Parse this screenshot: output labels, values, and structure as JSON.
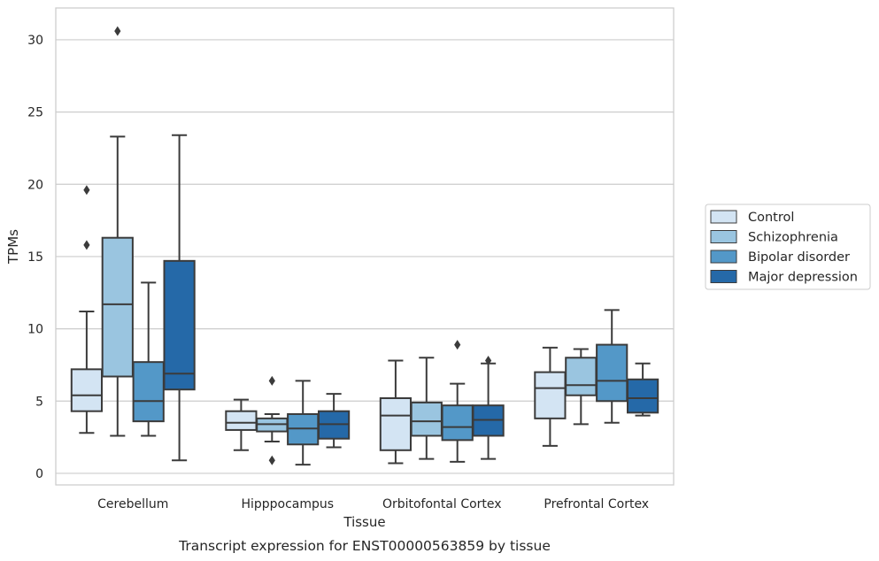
{
  "caption": "Transcript expression for ENST00000563859 by tissue",
  "chart_data": {
    "type": "boxplot",
    "xlabel": "Tissue",
    "ylabel": "TPMs",
    "ylim": [
      -0.8,
      32.2
    ],
    "yticks": [
      0,
      5,
      10,
      15,
      20,
      25,
      30
    ],
    "grid": "horizontal",
    "legend_position": "right",
    "categories": [
      "Cerebellum",
      "Hipppocampus",
      "Orbitofontal Cortex",
      "Prefrontal Cortex"
    ],
    "series": [
      {
        "name": "Control",
        "color": "#d3e4f3",
        "boxes": [
          {
            "whislo": 2.8,
            "q1": 4.3,
            "med": 5.4,
            "q3": 7.2,
            "whishi": 11.2,
            "fliers": [
              15.8,
              19.6
            ]
          },
          {
            "whislo": 1.6,
            "q1": 3.0,
            "med": 3.5,
            "q3": 4.3,
            "whishi": 5.1,
            "fliers": []
          },
          {
            "whislo": 0.7,
            "q1": 1.6,
            "med": 4.0,
            "q3": 5.2,
            "whishi": 7.8,
            "fliers": []
          },
          {
            "whislo": 1.9,
            "q1": 3.8,
            "med": 5.9,
            "q3": 7.0,
            "whishi": 8.7,
            "fliers": []
          }
        ]
      },
      {
        "name": "Schizophrenia",
        "color": "#9ac5e0",
        "boxes": [
          {
            "whislo": 2.6,
            "q1": 6.7,
            "med": 11.7,
            "q3": 16.3,
            "whishi": 23.3,
            "fliers": [
              30.6
            ]
          },
          {
            "whislo": 2.2,
            "q1": 2.9,
            "med": 3.4,
            "q3": 3.8,
            "whishi": 4.1,
            "fliers": [
              0.9,
              6.4
            ]
          },
          {
            "whislo": 1.0,
            "q1": 2.6,
            "med": 3.6,
            "q3": 4.9,
            "whishi": 8.0,
            "fliers": []
          },
          {
            "whislo": 3.4,
            "q1": 5.4,
            "med": 6.1,
            "q3": 8.0,
            "whishi": 8.6,
            "fliers": []
          }
        ]
      },
      {
        "name": "Bipolar disorder",
        "color": "#5398c8",
        "boxes": [
          {
            "whislo": 2.6,
            "q1": 3.6,
            "med": 5.0,
            "q3": 7.7,
            "whishi": 13.2,
            "fliers": []
          },
          {
            "whislo": 0.6,
            "q1": 2.0,
            "med": 3.1,
            "q3": 4.1,
            "whishi": 6.4,
            "fliers": []
          },
          {
            "whislo": 0.8,
            "q1": 2.3,
            "med": 3.2,
            "q3": 4.7,
            "whishi": 6.2,
            "fliers": [
              8.9
            ]
          },
          {
            "whislo": 3.5,
            "q1": 5.0,
            "med": 6.4,
            "q3": 8.9,
            "whishi": 11.3,
            "fliers": []
          }
        ]
      },
      {
        "name": "Major depression",
        "color": "#2569a8",
        "boxes": [
          {
            "whislo": 0.9,
            "q1": 5.8,
            "med": 6.9,
            "q3": 14.7,
            "whishi": 23.4,
            "fliers": []
          },
          {
            "whislo": 1.8,
            "q1": 2.4,
            "med": 3.4,
            "q3": 4.3,
            "whishi": 5.5,
            "fliers": []
          },
          {
            "whislo": 1.0,
            "q1": 2.6,
            "med": 3.7,
            "q3": 4.7,
            "whishi": 7.6,
            "fliers": [
              7.8
            ]
          },
          {
            "whislo": 4.0,
            "q1": 4.2,
            "med": 5.2,
            "q3": 6.5,
            "whishi": 7.6,
            "fliers": []
          }
        ]
      }
    ],
    "colors": {
      "box_edge": "#3b3b3b",
      "grid": "#cccccc",
      "axes_frame": "#cccccc",
      "text": "#262626"
    }
  }
}
